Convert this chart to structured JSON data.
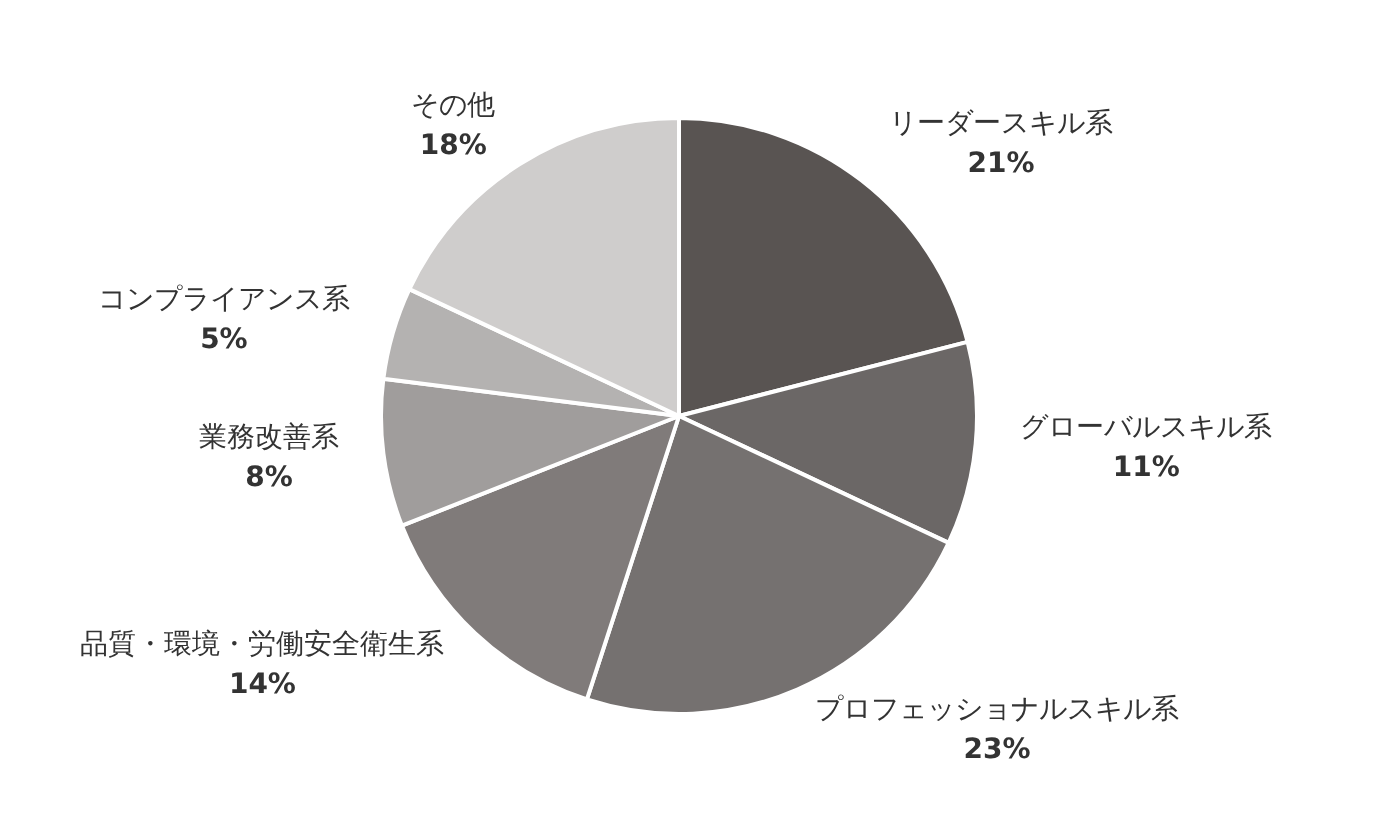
{
  "chart_data": {
    "type": "pie",
    "categories": [
      "リーダースキル系",
      "グローバルスキル系",
      "プロフェッショナルスキル系",
      "品質・環境・労働安全衛生系",
      "業務改善系",
      "コンプライアンス系",
      "その他"
    ],
    "values": [
      21,
      11,
      23,
      14,
      8,
      5,
      18
    ],
    "value_labels": [
      "21%",
      "11%",
      "23%",
      "14%",
      "8%",
      "5%",
      "18%"
    ],
    "colors": [
      "#595452",
      "#6b6766",
      "#757170",
      "#807b7a",
      "#a09d9c",
      "#b4b2b1",
      "#cfcdcc"
    ],
    "legend": false
  }
}
